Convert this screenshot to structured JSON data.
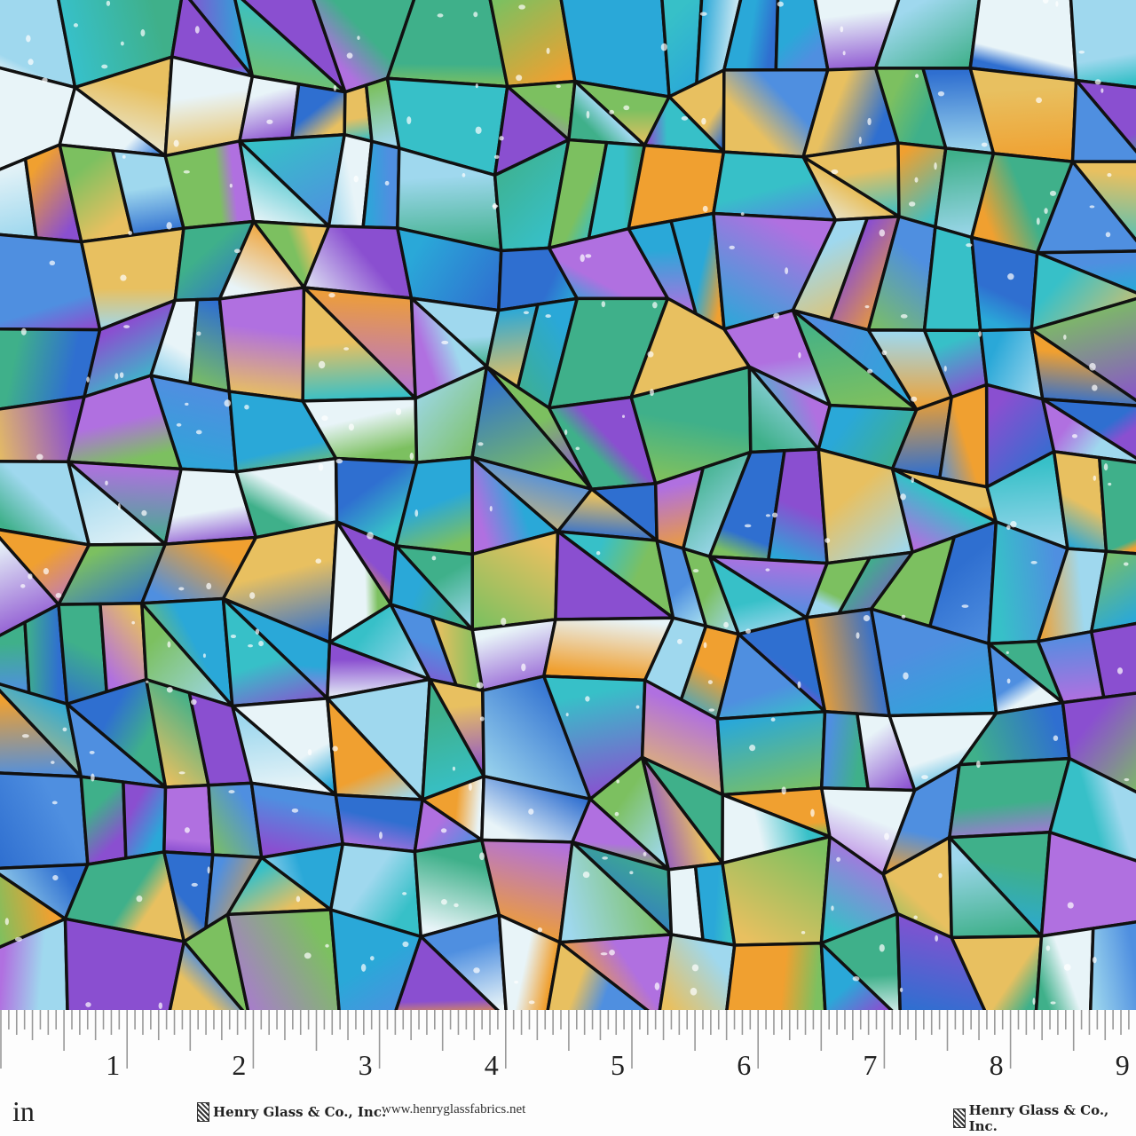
{
  "fabric": {
    "pattern": "stained-glass mosaic",
    "palette": [
      "#2aa8d8",
      "#37c0c8",
      "#4f8fe0",
      "#8a4fd0",
      "#b070e0",
      "#f0a030",
      "#e8c060",
      "#7cc060",
      "#3fb08a",
      "#e8f4f8",
      "#9fd8ee",
      "#2f6fd0"
    ],
    "lead_color": "#111111"
  },
  "ruler": {
    "unit": "in",
    "labels": [
      "1",
      "2",
      "3",
      "4",
      "5",
      "6",
      "7",
      "8",
      "9"
    ],
    "brand_left": "Henry Glass & Co., Inc.",
    "url": "www.henryglassfabrics.net",
    "brand_right": "Henry Glass & Co., Inc."
  }
}
